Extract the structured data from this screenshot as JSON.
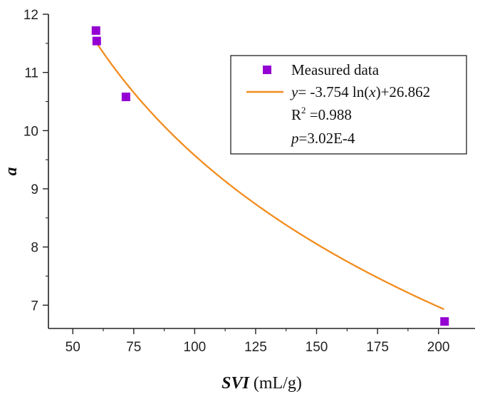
{
  "chart_data": {
    "type": "scatter",
    "title": "",
    "xlabel": {
      "italic": "SVI",
      "unit": " (mL/g)"
    },
    "ylabel": "a",
    "xlim": [
      40,
      215
    ],
    "ylim": [
      6.6,
      12.0
    ],
    "x_ticks": [
      50,
      75,
      100,
      125,
      150,
      175,
      200
    ],
    "y_ticks": [
      7,
      8,
      9,
      10,
      11,
      12
    ],
    "series": [
      {
        "name": "Measured data",
        "kind": "scatter",
        "x": [
          59.5,
          59.8,
          71.8,
          202.5
        ],
        "y": [
          11.72,
          11.54,
          10.58,
          6.72
        ],
        "color": "#9400d3"
      },
      {
        "name": "fit",
        "kind": "line",
        "equation": {
          "a": -3.754,
          "b": 26.862,
          "x_start": 59.5,
          "x_end": 202.0
        },
        "color": "#f28c1e"
      }
    ],
    "legend": {
      "position": "top-right",
      "entries": [
        {
          "text": "Measured data"
        },
        {
          "prefix_italic": "y",
          "text": "= -3.754 ln(",
          "mid_italic": "x",
          "suffix": ")+26.862"
        },
        {
          "base": "R",
          "sup": "2",
          "text": " =0.988"
        },
        {
          "prefix_italic": "p",
          "text": "=3.02E-4"
        }
      ]
    },
    "grid": false
  }
}
